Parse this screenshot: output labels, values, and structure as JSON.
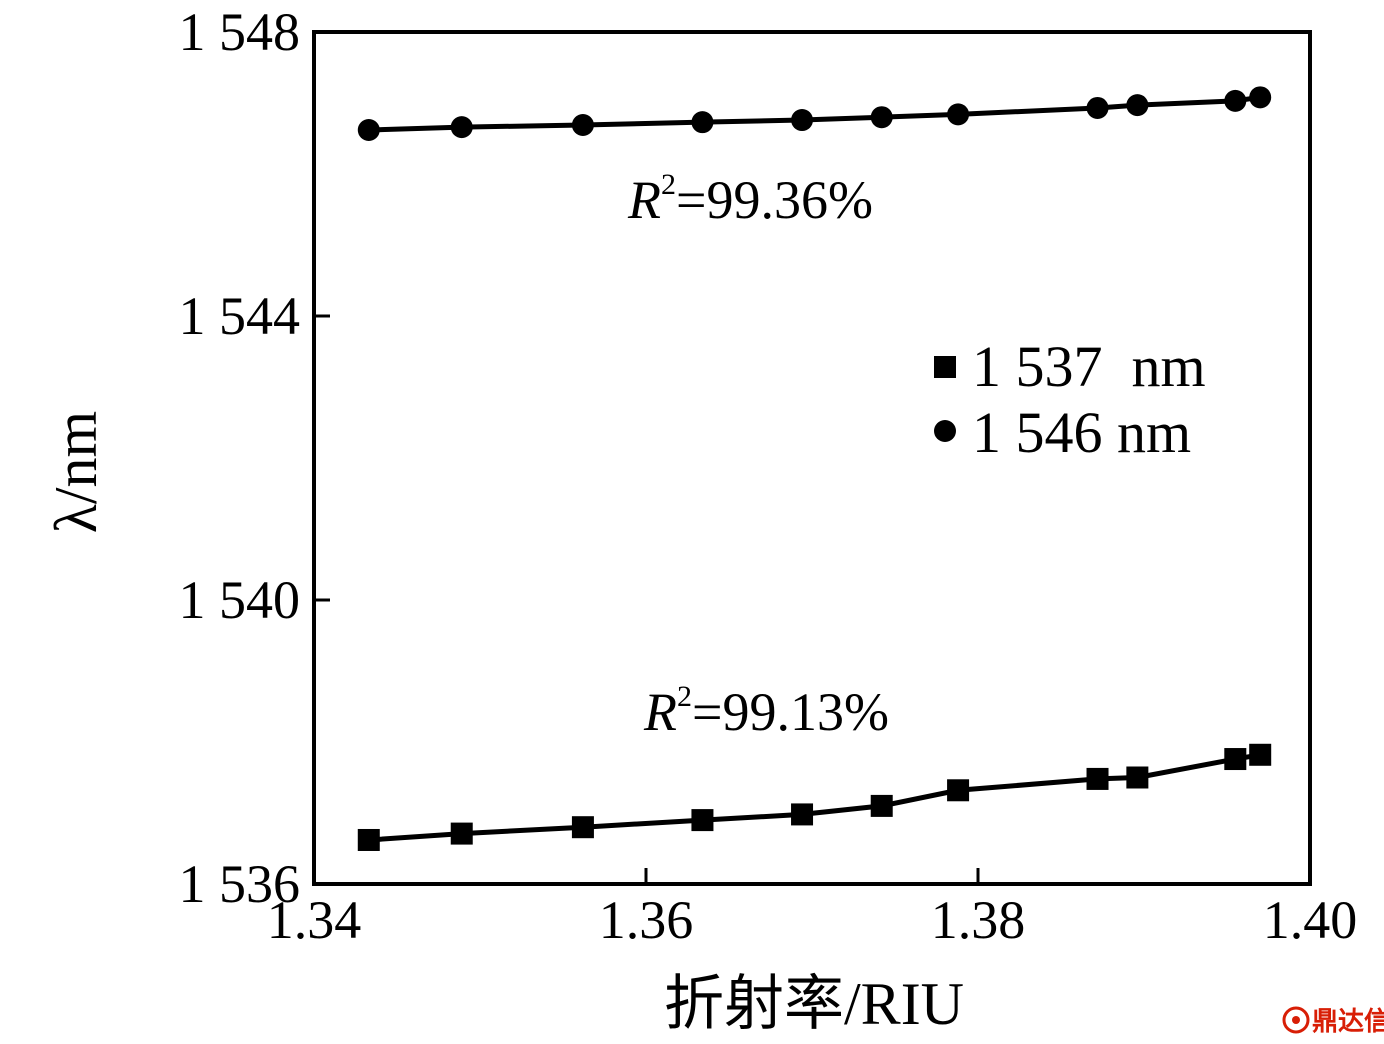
{
  "chart_data": {
    "type": "line",
    "xlabel": "折射率/RIU",
    "ylabel": "λ/nm",
    "xlim": [
      1.34,
      1.4
    ],
    "ylim": [
      1536,
      1548
    ],
    "x_ticks": [
      "1.34",
      "1.36",
      "1.38",
      "1.40"
    ],
    "y_ticks": [
      "1 536",
      "1 540",
      "1 544",
      "1 548"
    ],
    "grid": false,
    "legend_position": "right",
    "series": [
      {
        "name": "1 537  nm",
        "marker": "square",
        "x": [
          1.3433,
          1.3489,
          1.3562,
          1.3634,
          1.3694,
          1.3742,
          1.3788,
          1.3872,
          1.3896,
          1.3955,
          1.397
        ],
        "y": [
          1536.62,
          1536.71,
          1536.8,
          1536.9,
          1536.98,
          1537.1,
          1537.32,
          1537.48,
          1537.5,
          1537.76,
          1537.82
        ]
      },
      {
        "name": "1 546 nm",
        "marker": "circle",
        "x": [
          1.3433,
          1.3489,
          1.3562,
          1.3634,
          1.3694,
          1.3742,
          1.3788,
          1.3872,
          1.3896,
          1.3955,
          1.397
        ],
        "y": [
          1546.62,
          1546.66,
          1546.69,
          1546.73,
          1546.76,
          1546.8,
          1546.84,
          1546.93,
          1546.97,
          1547.03,
          1547.08
        ]
      }
    ],
    "annotations": [
      {
        "r_label": "R",
        "superscript": "2",
        "value": "=99.36%"
      },
      {
        "r_label": "R",
        "superscript": "2",
        "value": "=99.13%"
      }
    ]
  },
  "watermark": {
    "icon": "dingdaxin-logo-icon",
    "text": "鼎达信",
    "color": "#d81e06"
  }
}
